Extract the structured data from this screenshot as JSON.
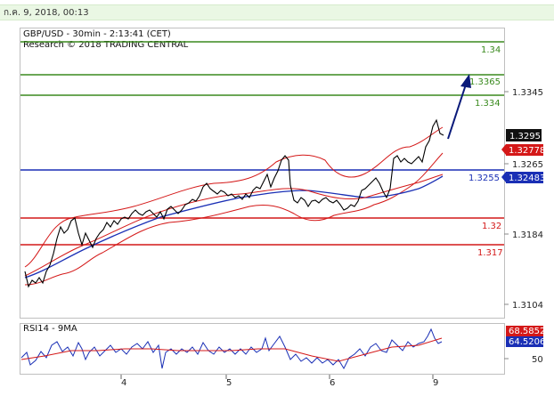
{
  "date_label": "ก.ค. 9, 2018, 00:13",
  "chart": {
    "title": "GBP/USD - 30min - 2:13:41 (CET)",
    "copyright": "Research © 2018 TRADING CENTRAL",
    "price_ticks": [
      "1.3345",
      "1.3265",
      "1.3184",
      "1.3104"
    ],
    "levels": [
      {
        "label": "1.34",
        "value": 1.34,
        "color": "#3a8a1e"
      },
      {
        "label": "1.3365",
        "value": 1.3365,
        "color": "#3a8a1e"
      },
      {
        "label": "1.334",
        "value": 1.334,
        "color": "#3a8a1e"
      },
      {
        "label": "1.3255",
        "value": 1.3255,
        "color": "#1a2fb5"
      },
      {
        "label": "1.32",
        "value": 1.32,
        "color": "#d41818"
      },
      {
        "label": "1.317",
        "value": 1.317,
        "color": "#d41818"
      }
    ],
    "badges": {
      "last_price": "1.3295",
      "red_price": "1.32778",
      "blue_price": "1.32483"
    },
    "x_days": [
      "4",
      "5",
      "6",
      "9"
    ]
  },
  "rsi": {
    "title": "RSI14 - 9MA",
    "tick": "50",
    "badge_red": "68.5852",
    "badge_blue": "64.5206"
  },
  "colors": {
    "support": "#d41818",
    "pivot": "#1a2fb5",
    "resistance": "#3a8a1e",
    "arrow": "#0a1a7a"
  }
}
